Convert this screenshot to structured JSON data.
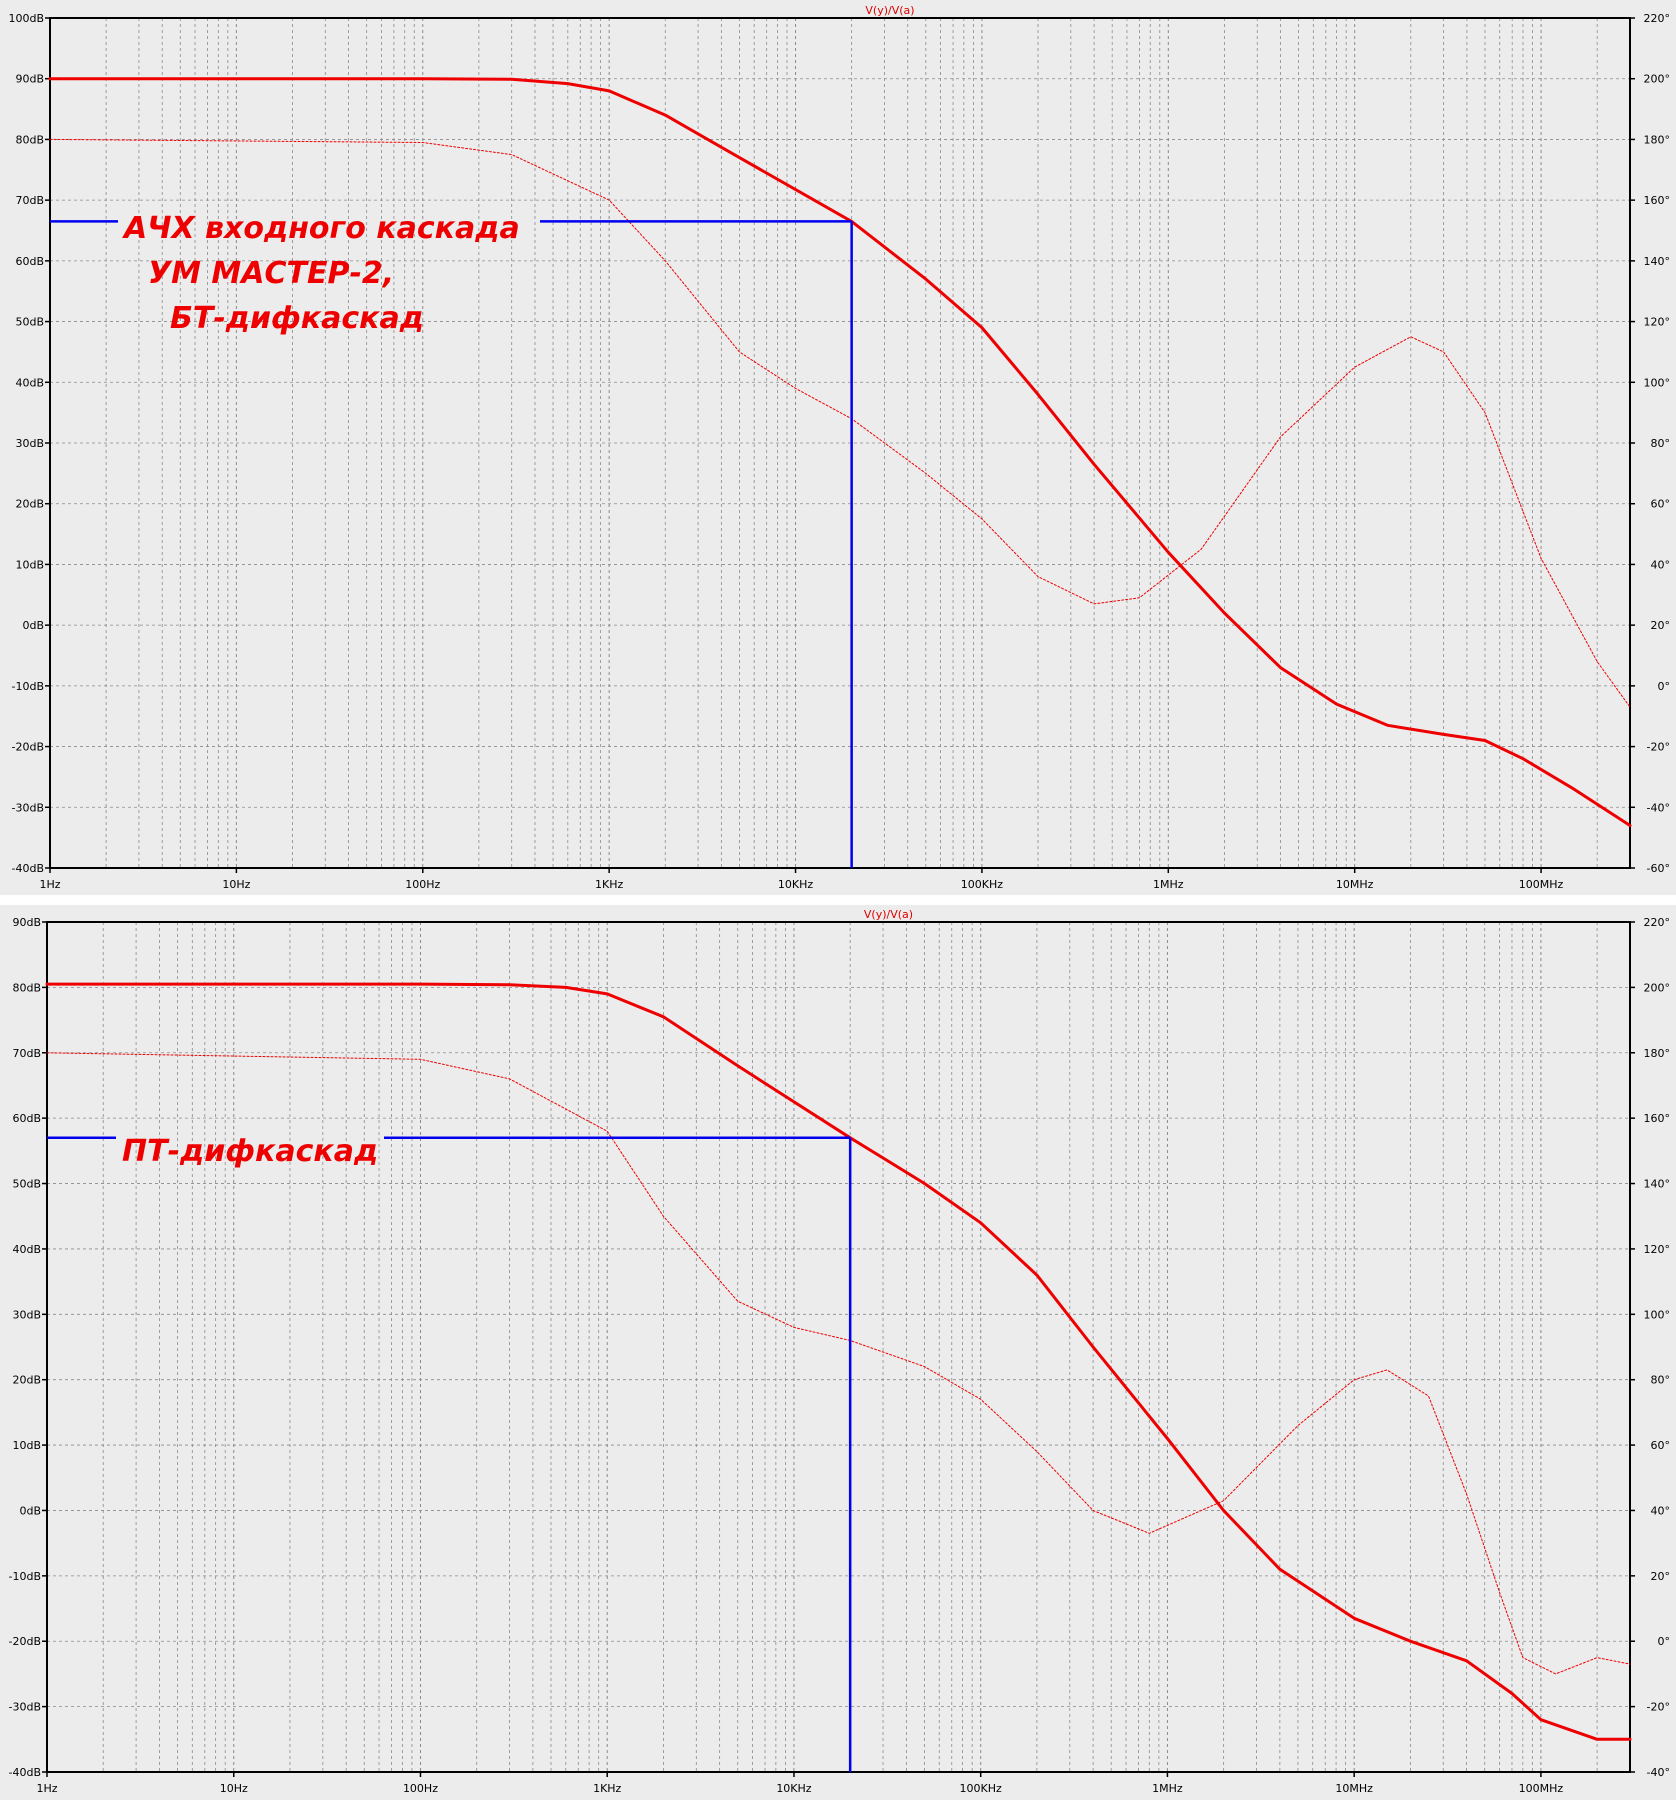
{
  "chart_data": [
    {
      "type": "line",
      "title": "V(y)/V(a)",
      "x_scale": "log",
      "xlim": [
        1,
        300000000
      ],
      "x_ticks": [
        1,
        10,
        100,
        1000,
        10000,
        100000,
        1000000,
        10000000,
        100000000
      ],
      "x_tick_labels": [
        "1Hz",
        "10Hz",
        "100Hz",
        "1KHz",
        "10KHz",
        "100KHz",
        "1MHz",
        "10MHz",
        "100MHz"
      ],
      "ylim_left": [
        -40,
        100
      ],
      "y_ticks_left": [
        -40,
        -30,
        -20,
        -10,
        0,
        10,
        20,
        30,
        40,
        50,
        60,
        70,
        80,
        90,
        100
      ],
      "y_tick_labels_left": [
        "-40dB",
        "-30dB",
        "-20dB",
        "-10dB",
        "0dB",
        "10dB",
        "20dB",
        "30dB",
        "40dB",
        "50dB",
        "60dB",
        "70dB",
        "80dB",
        "90dB",
        "100dB"
      ],
      "ylim_right": [
        -60,
        220
      ],
      "y_ticks_right": [
        -60,
        -40,
        -20,
        0,
        20,
        40,
        60,
        80,
        100,
        120,
        140,
        160,
        180,
        200,
        220
      ],
      "y_tick_labels_right": [
        "-60°",
        "-40°",
        "-20°",
        "0°",
        "20°",
        "40°",
        "60°",
        "80°",
        "100°",
        "120°",
        "140°",
        "160°",
        "180°",
        "200°",
        "220°"
      ],
      "grid": true,
      "series": [
        {
          "axis": "left",
          "style": "solid",
          "color": "#ee0000",
          "points": [
            [
              1,
              90
            ],
            [
              100,
              90
            ],
            [
              300,
              89.9
            ],
            [
              600,
              89.2
            ],
            [
              1000,
              88
            ],
            [
              2000,
              84
            ],
            [
              5000,
              77
            ],
            [
              20000,
              66.5
            ],
            [
              50000,
              57
            ],
            [
              100000,
              49
            ],
            [
              200000,
              38
            ],
            [
              400000,
              26.5
            ],
            [
              1000000,
              12
            ],
            [
              2000000,
              2
            ],
            [
              4000000,
              -7
            ],
            [
              8000000,
              -13
            ],
            [
              15000000,
              -16.5
            ],
            [
              30000000,
              -18
            ],
            [
              50000000,
              -19
            ],
            [
              80000000,
              -22
            ],
            [
              150000000,
              -27
            ],
            [
              300000000,
              -33
            ]
          ]
        },
        {
          "axis": "right",
          "style": "dashed",
          "color": "#ee0000",
          "points": [
            [
              1,
              180
            ],
            [
              100,
              179
            ],
            [
              300,
              175
            ],
            [
              1000,
              160
            ],
            [
              2000,
              140
            ],
            [
              5000,
              110
            ],
            [
              10000,
              98
            ],
            [
              20000,
              88
            ],
            [
              50000,
              70
            ],
            [
              100000,
              55
            ],
            [
              200000,
              36
            ],
            [
              400000,
              27
            ],
            [
              700000,
              29
            ],
            [
              1500000,
              45
            ],
            [
              4000000,
              82
            ],
            [
              10000000,
              105
            ],
            [
              20000000,
              115
            ],
            [
              30000000,
              110
            ],
            [
              50000000,
              90
            ],
            [
              100000000,
              42
            ],
            [
              200000000,
              8
            ],
            [
              300000000,
              -7
            ]
          ]
        }
      ],
      "marker": {
        "x": 20000,
        "y": 66.5,
        "color": "#0000ee"
      },
      "annotation": [
        "АЧХ входного каскада",
        "УМ МАСТЕР-2,",
        "БТ-дифкаскад"
      ]
    },
    {
      "type": "line",
      "title": "V(y)/V(a)",
      "x_scale": "log",
      "xlim": [
        1,
        300000000
      ],
      "x_ticks": [
        1,
        10,
        100,
        1000,
        10000,
        100000,
        1000000,
        10000000,
        100000000
      ],
      "x_tick_labels": [
        "1Hz",
        "10Hz",
        "100Hz",
        "1KHz",
        "10KHz",
        "100KHz",
        "1MHz",
        "10MHz",
        "100MHz"
      ],
      "ylim_left": [
        -40,
        90
      ],
      "y_ticks_left": [
        -40,
        -30,
        -20,
        -10,
        0,
        10,
        20,
        30,
        40,
        50,
        60,
        70,
        80,
        90
      ],
      "y_tick_labels_left": [
        "-40dB",
        "-30dB",
        "-20dB",
        "-10dB",
        "0dB",
        "10dB",
        "20dB",
        "30dB",
        "40dB",
        "50dB",
        "60dB",
        "70dB",
        "80dB",
        "90dB"
      ],
      "ylim_right": [
        -40,
        220
      ],
      "y_ticks_right": [
        -40,
        -20,
        0,
        20,
        40,
        60,
        80,
        100,
        120,
        140,
        160,
        180,
        200,
        220
      ],
      "y_tick_labels_right": [
        "-40°",
        "-20°",
        "0°",
        "20°",
        "40°",
        "60°",
        "80°",
        "100°",
        "120°",
        "140°",
        "160°",
        "180°",
        "200°",
        "220°"
      ],
      "grid": true,
      "series": [
        {
          "axis": "left",
          "style": "solid",
          "color": "#ee0000",
          "points": [
            [
              1,
              80.5
            ],
            [
              100,
              80.5
            ],
            [
              300,
              80.4
            ],
            [
              600,
              80
            ],
            [
              1000,
              79
            ],
            [
              2000,
              75.5
            ],
            [
              5000,
              68
            ],
            [
              20000,
              57
            ],
            [
              50000,
              50
            ],
            [
              100000,
              44
            ],
            [
              200000,
              36
            ],
            [
              400000,
              25
            ],
            [
              1000000,
              11
            ],
            [
              2000000,
              0
            ],
            [
              4000000,
              -9
            ],
            [
              10000000,
              -16.5
            ],
            [
              20000000,
              -20
            ],
            [
              40000000,
              -23
            ],
            [
              70000000,
              -28
            ],
            [
              100000000,
              -32
            ],
            [
              200000000,
              -35
            ],
            [
              300000000,
              -35
            ]
          ]
        },
        {
          "axis": "right",
          "style": "dashed",
          "color": "#ee0000",
          "points": [
            [
              1,
              180
            ],
            [
              100,
              178
            ],
            [
              300,
              172
            ],
            [
              1000,
              156
            ],
            [
              2000,
              130
            ],
            [
              5000,
              104
            ],
            [
              10000,
              96
            ],
            [
              20000,
              92
            ],
            [
              50000,
              84
            ],
            [
              100000,
              74
            ],
            [
              200000,
              58
            ],
            [
              400000,
              40
            ],
            [
              800000,
              33
            ],
            [
              2000000,
              43
            ],
            [
              5000000,
              66
            ],
            [
              10000000,
              80
            ],
            [
              15000000,
              83
            ],
            [
              25000000,
              75
            ],
            [
              40000000,
              45
            ],
            [
              60000000,
              15
            ],
            [
              80000000,
              -5
            ],
            [
              120000000,
              -10
            ],
            [
              200000000,
              -5
            ],
            [
              300000000,
              -7
            ]
          ]
        }
      ],
      "marker": {
        "x": 20000,
        "y": 57,
        "color": "#0000ee"
      },
      "annotation": [
        "ПТ-дифкаскад"
      ]
    }
  ]
}
